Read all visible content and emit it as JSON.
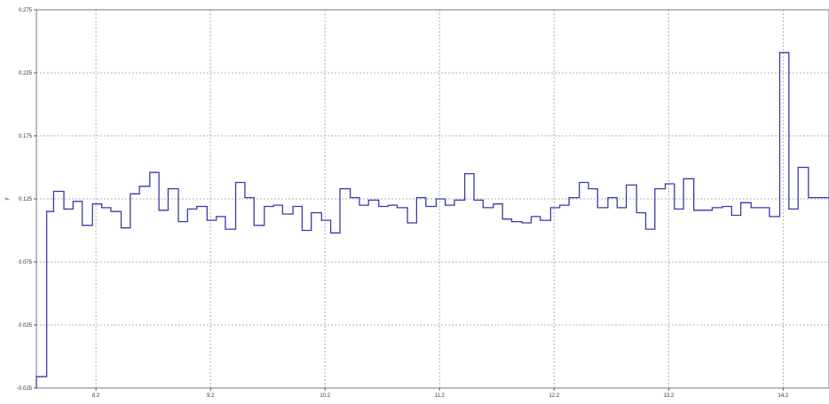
{
  "chart_data": {
    "type": "line",
    "subtype": "step",
    "ylabel": "y",
    "xlim": [
      7.68,
      14.6
    ],
    "ylim": [
      -0.025,
      0.275
    ],
    "x_ticks": [
      8.2,
      9.2,
      10.2,
      11.2,
      12.2,
      13.2,
      14.2
    ],
    "x_tick_labels": [
      "8.2",
      "9.2",
      "10.2",
      "11.2",
      "12.2",
      "13.2",
      "14.2"
    ],
    "y_ticks": [
      -0.025,
      0.025,
      0.075,
      0.125,
      0.175,
      0.225,
      0.275
    ],
    "y_tick_labels": [
      "-0.025",
      "0.025",
      "0.075",
      "0.125",
      "0.175",
      "0.225",
      "0.275"
    ],
    "grid": true,
    "grid_style": "dotted",
    "line_color": "#3a3aa8",
    "series": [
      {
        "x": [
          7.68,
          7.77,
          7.83,
          7.92,
          8.0,
          8.08,
          8.17,
          8.25,
          8.33,
          8.42,
          8.5,
          8.58,
          8.67,
          8.75,
          8.83,
          8.92,
          9.0,
          9.08,
          9.17,
          9.25,
          9.33,
          9.42,
          9.5,
          9.58,
          9.67,
          9.75,
          9.83,
          9.92,
          10.0,
          10.08,
          10.17,
          10.25,
          10.33,
          10.42,
          10.5,
          10.58,
          10.67,
          10.75,
          10.83,
          10.92,
          11.0,
          11.08,
          11.17,
          11.25,
          11.33,
          11.42,
          11.5,
          11.58,
          11.67,
          11.75,
          11.83,
          11.92,
          12.0,
          12.08,
          12.17,
          12.25,
          12.33,
          12.42,
          12.5,
          12.58,
          12.67,
          12.75,
          12.83,
          12.92,
          13.0,
          13.08,
          13.17,
          13.25,
          13.33,
          13.42,
          13.58,
          13.67,
          13.75,
          13.83,
          13.92,
          14.08,
          14.17,
          14.25,
          14.33,
          14.42,
          14.5
        ],
        "values": [
          -0.016,
          0.115,
          0.131,
          0.117,
          0.123,
          0.104,
          0.121,
          0.118,
          0.115,
          0.102,
          0.129,
          0.135,
          0.146,
          0.116,
          0.133,
          0.107,
          0.117,
          0.119,
          0.108,
          0.111,
          0.101,
          0.138,
          0.126,
          0.104,
          0.119,
          0.12,
          0.113,
          0.119,
          0.1,
          0.114,
          0.108,
          0.098,
          0.133,
          0.126,
          0.12,
          0.124,
          0.119,
          0.12,
          0.118,
          0.106,
          0.126,
          0.119,
          0.125,
          0.12,
          0.124,
          0.145,
          0.124,
          0.118,
          0.121,
          0.109,
          0.107,
          0.106,
          0.111,
          0.108,
          0.118,
          0.12,
          0.126,
          0.138,
          0.133,
          0.118,
          0.126,
          0.118,
          0.136,
          0.114,
          0.101,
          0.133,
          0.137,
          0.117,
          0.141,
          0.116,
          0.118,
          0.119,
          0.112,
          0.122,
          0.118,
          0.111,
          0.241,
          0.117,
          0.15,
          0.126,
          0.126
        ]
      }
    ]
  }
}
